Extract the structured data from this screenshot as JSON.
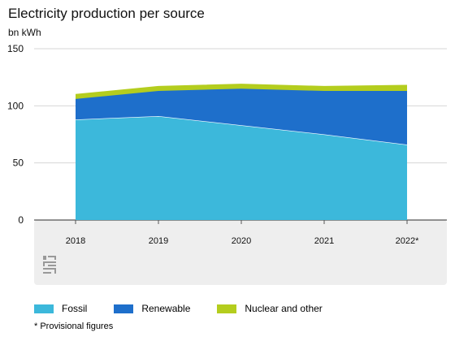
{
  "chart_data": {
    "type": "area",
    "stacked": true,
    "title": "Electricity production per source",
    "ylabel": "bn kWh",
    "categories": [
      "2018",
      "2019",
      "2020",
      "2021",
      "2022*"
    ],
    "ylim": [
      0,
      150
    ],
    "yticks": [
      0,
      50,
      100,
      150
    ],
    "series": [
      {
        "name": "Fossil",
        "color": "#3cb8db",
        "values": [
          88,
          91,
          83,
          75,
          66
        ]
      },
      {
        "name": "Renewable",
        "color": "#1e6fcb",
        "values": [
          18,
          22,
          32,
          38,
          47
        ]
      },
      {
        "name": "Nuclear and other",
        "color": "#b4cd1e",
        "values": [
          4,
          4,
          4,
          4,
          5
        ]
      }
    ],
    "grid": "horizontal",
    "legend_position": "bottom"
  },
  "footnote": "* Provisional figures",
  "logo_text": "cbs"
}
